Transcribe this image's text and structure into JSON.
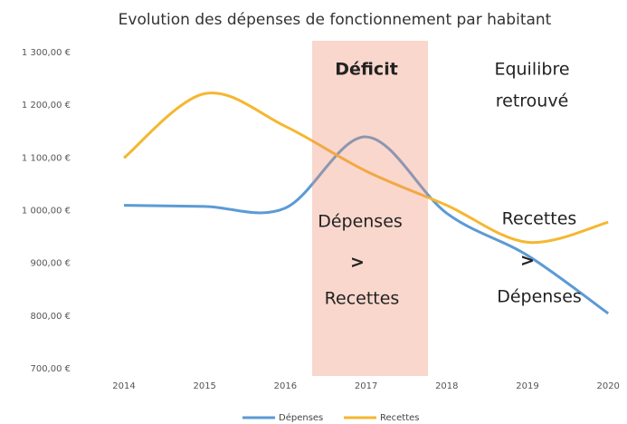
{
  "chart_data": {
    "type": "line",
    "title": "Evolution des dépenses de fonctionnement par habitant",
    "categories": [
      "2014",
      "2015",
      "2016",
      "2017",
      "2018",
      "2019",
      "2020"
    ],
    "series": [
      {
        "name": "Dépenses",
        "color": "#5b9bd5",
        "values": [
          1010,
          1008,
          1005,
          1140,
          995,
          915,
          805
        ]
      },
      {
        "name": "Recettes",
        "color": "#f5b731",
        "values": [
          1100,
          1222,
          1160,
          1075,
          1010,
          940,
          978
        ]
      }
    ],
    "ylim": [
      700,
      1300
    ],
    "yticks": [
      {
        "value": 700,
        "label": "700,00 €"
      },
      {
        "value": 800,
        "label": "800,00 €"
      },
      {
        "value": 900,
        "label": "900,00 €"
      },
      {
        "value": 1000,
        "label": "1 000,00 €"
      },
      {
        "value": 1100,
        "label": "1 100,00 €"
      },
      {
        "value": 1200,
        "label": "1 200,00 €"
      },
      {
        "value": 1300,
        "label": "1 300,00 €"
      }
    ],
    "grid": false,
    "legend": "bottom",
    "annotations": [
      "Déficit",
      "Equilibre",
      "retrouvé",
      "Dépenses",
      ">",
      "Recettes",
      "Recettes",
      ">",
      "Dépenses"
    ]
  }
}
